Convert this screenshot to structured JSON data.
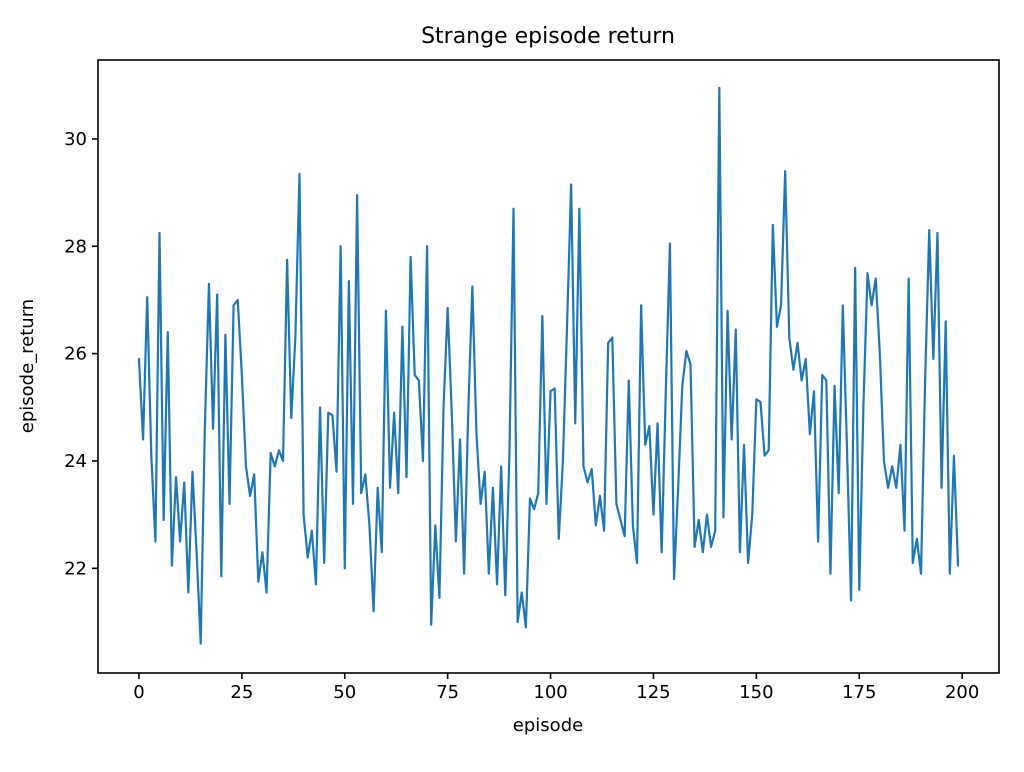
{
  "chart_data": {
    "type": "line",
    "title": "Strange episode return",
    "xlabel": "episode",
    "ylabel": "episode_return",
    "legend": null,
    "grid": false,
    "background": "#ffffff",
    "line_color": "#1f77b4",
    "xlim": [
      -9.95,
      208.95
    ],
    "ylim": [
      20.05,
      31.47
    ],
    "x_ticks": [
      0,
      25,
      50,
      75,
      100,
      125,
      150,
      175,
      200
    ],
    "y_ticks": [
      22,
      24,
      26,
      28,
      30
    ],
    "x_start": 0,
    "x_step": 1,
    "series": [
      {
        "name": "episode_return",
        "values": [
          25.9,
          24.4,
          27.05,
          24.1,
          22.5,
          28.25,
          22.9,
          26.4,
          22.05,
          23.7,
          22.5,
          23.6,
          21.55,
          23.8,
          22.3,
          20.6,
          24.6,
          27.3,
          24.6,
          27.1,
          21.85,
          26.35,
          23.2,
          26.9,
          27.0,
          25.6,
          23.9,
          23.35,
          23.75,
          21.75,
          22.3,
          21.55,
          24.15,
          23.9,
          24.2,
          24.0,
          27.75,
          24.8,
          26.3,
          29.35,
          23.0,
          22.2,
          22.7,
          21.7,
          25.0,
          22.1,
          24.9,
          24.85,
          23.8,
          28.0,
          22.0,
          27.35,
          23.2,
          28.95,
          23.4,
          23.75,
          22.8,
          21.2,
          23.5,
          22.3,
          26.8,
          23.5,
          24.9,
          23.4,
          26.5,
          23.7,
          27.8,
          25.6,
          25.5,
          24.0,
          28.0,
          20.95,
          22.8,
          21.45,
          25.0,
          26.85,
          24.9,
          22.5,
          24.4,
          21.9,
          24.9,
          27.25,
          24.5,
          23.2,
          23.8,
          21.9,
          23.5,
          21.7,
          23.9,
          21.5,
          24.1,
          28.7,
          21.0,
          21.55,
          20.9,
          23.3,
          23.1,
          23.4,
          26.7,
          23.2,
          25.3,
          25.35,
          22.55,
          24.0,
          26.5,
          29.15,
          24.7,
          28.7,
          23.9,
          23.6,
          23.85,
          22.8,
          23.35,
          22.7,
          26.2,
          26.3,
          23.2,
          22.9,
          22.6,
          25.5,
          22.8,
          22.1,
          26.9,
          24.3,
          24.65,
          23.0,
          24.7,
          22.3,
          25.3,
          28.05,
          21.8,
          23.5,
          25.4,
          26.05,
          25.8,
          22.4,
          22.9,
          22.3,
          23.0,
          22.4,
          22.7,
          30.95,
          22.95,
          26.8,
          24.4,
          26.45,
          22.3,
          24.3,
          22.1,
          23.0,
          25.15,
          25.1,
          24.1,
          24.2,
          28.4,
          26.5,
          26.9,
          29.4,
          26.3,
          25.7,
          26.2,
          25.5,
          25.9,
          24.5,
          25.3,
          22.5,
          25.6,
          25.5,
          21.9,
          25.4,
          23.4,
          26.9,
          24.3,
          21.4,
          27.6,
          21.6,
          25.0,
          27.5,
          26.9,
          27.4,
          26.0,
          24.0,
          23.5,
          23.9,
          23.5,
          24.3,
          22.7,
          27.4,
          22.1,
          22.55,
          21.9,
          25.5,
          28.3,
          25.9,
          28.25,
          23.5,
          26.6,
          21.9,
          24.1,
          22.05
        ]
      }
    ]
  }
}
